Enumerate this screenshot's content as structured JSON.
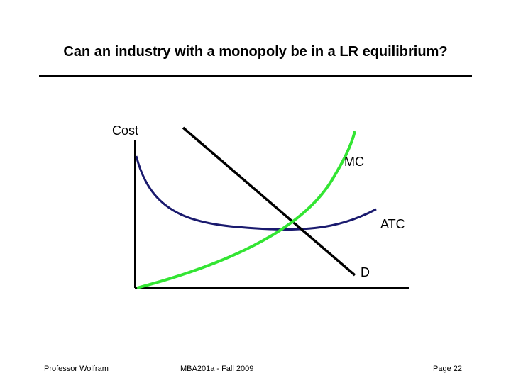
{
  "slide": {
    "title": "Can an industry with a monopoly be in a LR equilibrium?"
  },
  "diagram": {
    "axis_label": "Cost",
    "curves": [
      {
        "name": "MC",
        "color": "#33e533"
      },
      {
        "name": "ATC",
        "color": "#1a1a6e"
      },
      {
        "name": "D",
        "color": "#000000"
      }
    ]
  },
  "footer": {
    "left": "Professor Wolfram",
    "center": "MBA201a - Fall 2009",
    "right": "Page 22"
  }
}
